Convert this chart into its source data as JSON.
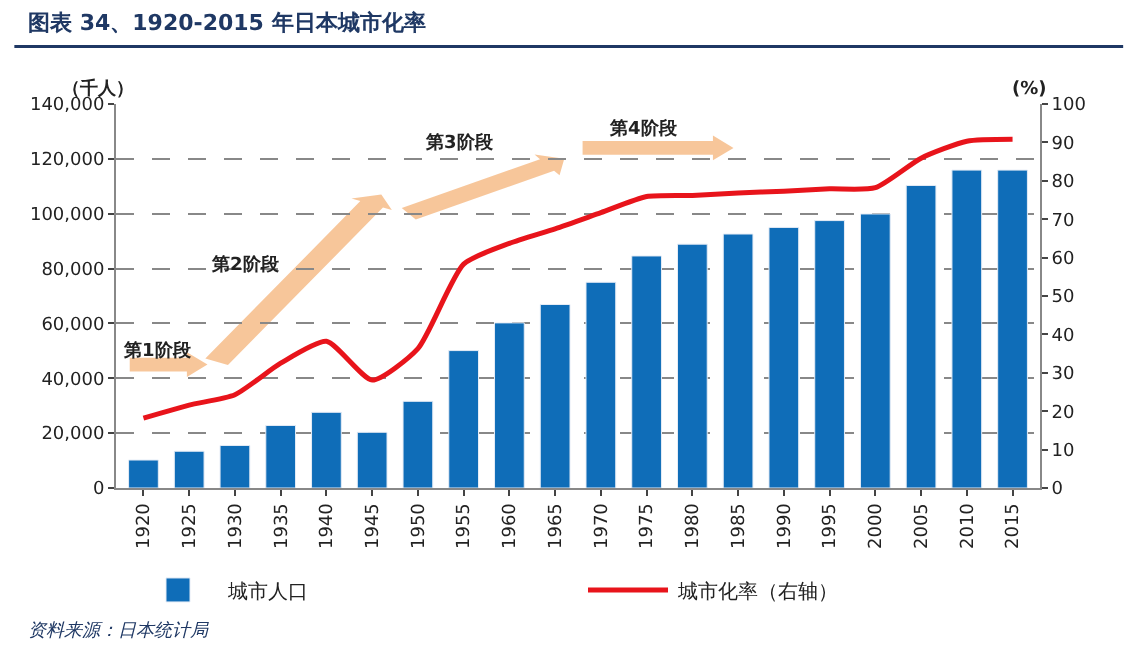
{
  "chart_data": {
    "type": "bar",
    "title": "图表 34、1920-2015 年日本城市化率",
    "ylabel": "（千人）",
    "y2label": "(%)",
    "categories": [
      "1920",
      "1925",
      "1930",
      "1935",
      "1940",
      "1945",
      "1950",
      "1955",
      "1960",
      "1965",
      "1970",
      "1975",
      "1980",
      "1985",
      "1990",
      "1995",
      "2000",
      "2005",
      "2010",
      "2015"
    ],
    "series": [
      {
        "name": "城市人口",
        "color": "#0f6db8",
        "values": [
          10200,
          13400,
          15500,
          22800,
          27600,
          20300,
          31600,
          50100,
          60200,
          66900,
          75000,
          84600,
          88900,
          92600,
          95000,
          97500,
          99900,
          110300,
          115900,
          115900
        ]
      },
      {
        "name": "城市化率（右轴）",
        "type": "line",
        "axis": "y2",
        "color": "#e8141b",
        "marker": "none",
        "line_style": "solid",
        "values": [
          18.2,
          21.6,
          24.3,
          32.5,
          38.2,
          28.1,
          36.3,
          58.3,
          63.7,
          67.5,
          71.7,
          75.9,
          76.2,
          76.8,
          77.3,
          77.9,
          78.2,
          85.9,
          90.3,
          90.8
        ]
      }
    ],
    "ylim": [
      0,
      140000
    ],
    "yticks": [
      0,
      {
        "value": 20000,
        "label": "20,000"
      },
      {
        "value": 40000,
        "label": "40,000"
      },
      {
        "value": 60000,
        "label": "60,000"
      },
      {
        "value": 80000,
        "label": "80,000"
      },
      {
        "value": 100000,
        "label": "100,000"
      },
      {
        "value": 120000,
        "label": "120,000"
      },
      {
        "value": 140000,
        "label": "140,000"
      }
    ],
    "y2lim": [
      0,
      100
    ],
    "y2ticks": [
      0,
      10,
      20,
      30,
      40,
      50,
      60,
      70,
      80,
      90,
      100
    ],
    "grid": "y",
    "legend": "bottom",
    "annotations": [
      "第1阶段",
      "第2阶段",
      "第3阶段",
      "第4阶段",
      "资料来源：日本统计局"
    ]
  }
}
